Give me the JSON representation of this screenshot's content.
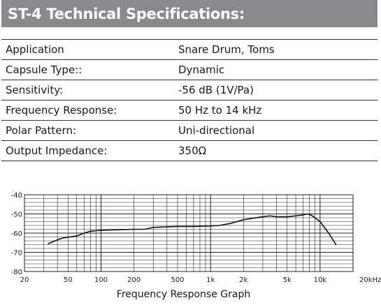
{
  "title": "ST-4 Technical Specifications:",
  "specs": [
    {
      "label": "Application",
      "value": "Snare Drum, Toms"
    },
    {
      "label": "Capsule Type::",
      "value": "Dynamic"
    },
    {
      "label": "Sensitivity:",
      "value": "-56 dB (1V/Pa)"
    },
    {
      "label": "Frequency Response:",
      "value": "50 Hz to 14 kHz"
    },
    {
      "label": "Polar Pattern:",
      "value": "Uni-directional"
    },
    {
      "label": "Output Impedance:",
      "value": "350Ω"
    }
  ],
  "graph_caption": "Frequency Response Graph",
  "chart_data": {
    "type": "line",
    "title": "Frequency Response Graph",
    "xscale": "log",
    "xlim": [
      20,
      20000
    ],
    "ylim": [
      -80,
      -40
    ],
    "grid": true,
    "xticks": [
      {
        "value": 20,
        "label": "20"
      },
      {
        "value": 50,
        "label": "50"
      },
      {
        "value": 100,
        "label": "100"
      },
      {
        "value": 200,
        "label": "200"
      },
      {
        "value": 500,
        "label": "500"
      },
      {
        "value": 1000,
        "label": "1k"
      },
      {
        "value": 2000,
        "label": "2k"
      },
      {
        "value": 5000,
        "label": "5k"
      },
      {
        "value": 10000,
        "label": "10k"
      },
      {
        "value": 20000,
        "label": "20kHz"
      }
    ],
    "yticks": [
      {
        "value": -40,
        "label": "-40"
      },
      {
        "value": -50,
        "label": "-50"
      },
      {
        "value": -60,
        "label": "-60"
      },
      {
        "value": -70,
        "label": "-70"
      },
      {
        "value": -80,
        "label": "-80"
      }
    ],
    "series": [
      {
        "x": [
          33,
          40,
          45,
          60,
          70,
          80,
          100,
          150,
          200,
          250,
          300,
          500,
          700,
          1000,
          1200,
          1500,
          2000,
          3000,
          3500,
          4000,
          5000,
          6000,
          7000,
          7700,
          8500,
          10000,
          12000,
          14000
        ],
        "y": [
          -65.5,
          -63.5,
          -62.5,
          -61.5,
          -60,
          -59,
          -58.5,
          -58.2,
          -58,
          -58,
          -57,
          -56.5,
          -56.5,
          -56.3,
          -56,
          -55,
          -53,
          -51.5,
          -51,
          -51.5,
          -51.5,
          -51,
          -50.5,
          -50,
          -51,
          -54,
          -60,
          -66
        ]
      }
    ]
  }
}
